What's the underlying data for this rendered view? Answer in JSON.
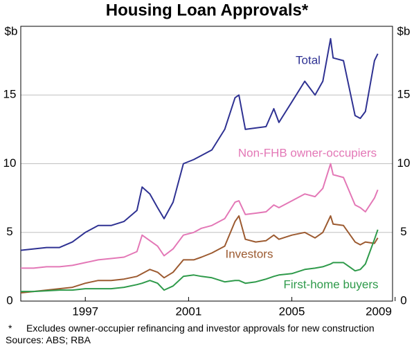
{
  "chart_data": {
    "type": "line",
    "title": "Housing Loan Approvals*",
    "ylabel": "$b",
    "y2label": "$b",
    "x": [
      1994.5,
      1995,
      1995.5,
      1996,
      1996.5,
      1997,
      1997.5,
      1998,
      1998.5,
      1999,
      1999.2,
      1999.5,
      1999.8,
      2000.05,
      2000.4,
      2000.8,
      2001.2,
      2001.5,
      2001.9,
      2002.4,
      2002.8,
      2002.95,
      2003.2,
      2003.6,
      2004,
      2004.3,
      2004.5,
      2005,
      2005.5,
      2005.9,
      2006.2,
      2006.5,
      2006.6,
      2007,
      2007.45,
      2007.65,
      2007.85,
      2008.2,
      2008.33
    ],
    "series": [
      {
        "name": "Total",
        "color": "#2e3192",
        "values": [
          3.7,
          3.8,
          3.9,
          3.9,
          4.3,
          5.0,
          5.5,
          5.5,
          5.8,
          6.6,
          8.3,
          7.8,
          6.8,
          6.0,
          7.2,
          10.0,
          10.3,
          10.6,
          11.0,
          12.5,
          14.8,
          15.0,
          12.5,
          12.6,
          12.7,
          14.0,
          13.0,
          14.5,
          16.0,
          15.0,
          16.0,
          19.1,
          17.7,
          17.5,
          13.5,
          13.3,
          13.8,
          17.5,
          18.0
        ]
      },
      {
        "name": "Non-FHB owner-occupiers",
        "color": "#e377b6",
        "values": [
          2.4,
          2.4,
          2.5,
          2.5,
          2.6,
          2.8,
          3.0,
          3.1,
          3.2,
          3.6,
          4.8,
          4.4,
          4.0,
          3.3,
          3.8,
          4.8,
          5.0,
          5.3,
          5.5,
          6.0,
          7.2,
          7.3,
          6.3,
          6.4,
          6.5,
          7.0,
          6.8,
          7.3,
          7.8,
          7.6,
          8.2,
          10.0,
          9.2,
          9.0,
          7.0,
          6.8,
          6.5,
          7.5,
          8.1
        ]
      },
      {
        "name": "Investors",
        "color": "#9c5a30",
        "values": [
          0.6,
          0.7,
          0.8,
          0.9,
          1.0,
          1.3,
          1.5,
          1.5,
          1.6,
          1.8,
          2.0,
          2.3,
          2.1,
          1.7,
          2.1,
          3.0,
          3.0,
          3.2,
          3.5,
          4.0,
          5.8,
          6.2,
          4.5,
          4.3,
          4.4,
          4.8,
          4.5,
          4.8,
          5.0,
          4.6,
          5.0,
          6.2,
          5.6,
          5.5,
          4.3,
          4.1,
          4.3,
          4.2,
          4.6
        ]
      },
      {
        "name": "First-home buyers",
        "color": "#2e9a4a",
        "values": [
          0.7,
          0.7,
          0.75,
          0.8,
          0.8,
          0.9,
          0.9,
          0.9,
          1.0,
          1.2,
          1.3,
          1.5,
          1.3,
          0.8,
          1.1,
          1.8,
          1.9,
          1.8,
          1.7,
          1.4,
          1.5,
          1.5,
          1.3,
          1.4,
          1.6,
          1.8,
          1.9,
          2.0,
          2.3,
          2.4,
          2.5,
          2.7,
          2.8,
          2.8,
          2.2,
          2.3,
          2.7,
          4.5,
          5.2
        ]
      }
    ],
    "xlim": [
      1994.5,
      2008.9
    ],
    "xticks": [
      1997,
      2001,
      2005,
      2009
    ],
    "ylim": [
      0,
      20
    ],
    "yticks": [
      0,
      5,
      10,
      15
    ],
    "y2lim": [
      0,
      20
    ],
    "y2ticks": [
      0,
      5,
      10,
      15
    ],
    "grid": true,
    "notes": {
      "marker": "*",
      "text": "Excludes owner-occupier refinancing and investor approvals for new construction",
      "sources": "Sources: ABS; RBA"
    }
  }
}
